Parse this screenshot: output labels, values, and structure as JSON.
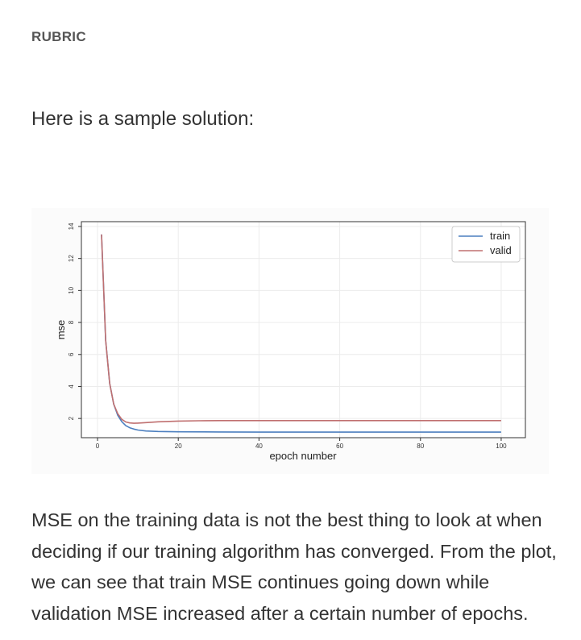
{
  "rubric": {
    "label": "RUBRIC"
  },
  "intro": {
    "text": "Here is a sample solution:"
  },
  "chart_data": {
    "type": "line",
    "title": "",
    "xlabel": "epoch number",
    "ylabel": "mse",
    "xlim": [
      -4,
      106
    ],
    "ylim": [
      0.8,
      14.3
    ],
    "xticks": [
      0,
      20,
      40,
      60,
      80,
      100
    ],
    "yticks": [
      2,
      4,
      6,
      8,
      10,
      12,
      14
    ],
    "grid": true,
    "legend_position": "top-right",
    "series": [
      {
        "name": "train",
        "color": "#4c7fbf",
        "x": [
          1,
          2,
          3,
          4,
          5,
          6,
          7,
          8,
          9,
          10,
          12,
          15,
          20,
          30,
          40,
          60,
          80,
          100
        ],
        "y": [
          13.5,
          6.9,
          4.2,
          2.9,
          2.2,
          1.8,
          1.55,
          1.42,
          1.34,
          1.28,
          1.22,
          1.19,
          1.17,
          1.16,
          1.15,
          1.15,
          1.15,
          1.15
        ]
      },
      {
        "name": "valid",
        "color": "#c07070",
        "x": [
          1,
          2,
          3,
          4,
          5,
          6,
          7,
          8,
          9,
          10,
          12,
          15,
          20,
          25,
          30,
          40,
          60,
          80,
          100
        ],
        "y": [
          13.5,
          6.9,
          4.2,
          2.9,
          2.3,
          1.95,
          1.78,
          1.72,
          1.7,
          1.71,
          1.74,
          1.79,
          1.84,
          1.86,
          1.87,
          1.87,
          1.87,
          1.87,
          1.87
        ]
      }
    ]
  },
  "explanation": {
    "text": "MSE on the training data is not the best thing to look at when deciding if our training algorithm has converged. From the plot, we can see that train MSE continues going down while validation MSE increased after a certain number of epochs."
  }
}
